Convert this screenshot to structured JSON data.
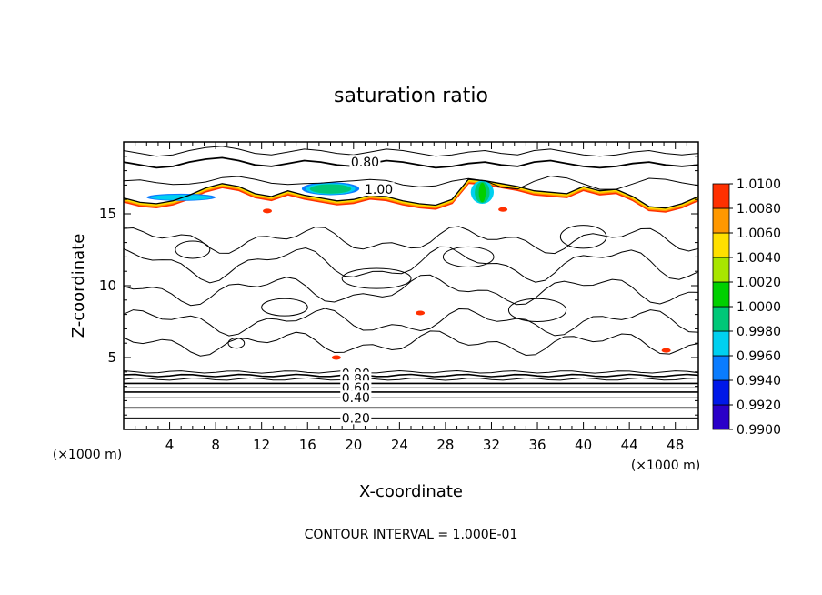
{
  "chart_data": {
    "type": "heatmap",
    "title": "saturation ratio",
    "xlabel": "X-coordinate",
    "ylabel": "Z-coordinate",
    "x_unit": "(×1000 m)",
    "z_unit": "(×1000 m)",
    "footer": "CONTOUR INTERVAL = 1.000E-01",
    "xlim": [
      0,
      50
    ],
    "ylim": [
      0,
      20
    ],
    "x_ticks": [
      4,
      8,
      12,
      16,
      20,
      24,
      28,
      32,
      36,
      40,
      44,
      48
    ],
    "y_ticks": [
      5,
      10,
      15
    ],
    "colorbar": {
      "levels": [
        "0.9900",
        "0.9920",
        "0.9940",
        "0.9960",
        "0.9980",
        "1.0000",
        "1.0020",
        "1.0040",
        "1.0060",
        "1.0080",
        "1.0100"
      ],
      "colors": [
        "#7a0090",
        "#2a00c8",
        "#0018e8",
        "#0a7cff",
        "#00d0f0",
        "#00c878",
        "#00d000",
        "#a8e600",
        "#ffe000",
        "#ff9800",
        "#ff3000",
        "#ff9090"
      ]
    },
    "contour_labels": [
      {
        "text": "0.80",
        "x": 21,
        "z": 18.6
      },
      {
        "text": "1.00",
        "x": 22.2,
        "z": 16.7
      },
      {
        "text": "0.90",
        "x": 20.2,
        "z": 3.9
      },
      {
        "text": "0.80",
        "x": 20.2,
        "z": 3.5
      },
      {
        "text": "0.60",
        "x": 20.2,
        "z": 2.9
      },
      {
        "text": "0.40",
        "x": 20.2,
        "z": 2.2
      },
      {
        "text": "0.20",
        "x": 20.2,
        "z": 0.8
      }
    ],
    "cloud_top_z": [
      16.1,
      15.8,
      15.7,
      15.9,
      16.3,
      16.8,
      17.1,
      16.9,
      16.4,
      16.2,
      16.6,
      16.3,
      16.1,
      15.9,
      16.0,
      16.3,
      16.2,
      15.9,
      15.7,
      15.6,
      16.0,
      17.4,
      17.3,
      17.1,
      16.9,
      16.6,
      16.5,
      16.4,
      16.9,
      16.6,
      16.7,
      16.2,
      15.5,
      15.4,
      15.7,
      16.2
    ],
    "upper_contour_z": [
      18.6,
      18.4,
      18.2,
      18.3,
      18.6,
      18.8,
      18.9,
      18.7,
      18.4,
      18.3,
      18.5,
      18.7,
      18.6,
      18.4,
      18.3,
      18.5,
      18.7,
      18.6,
      18.4,
      18.2,
      18.3,
      18.5,
      18.6,
      18.4,
      18.3,
      18.6,
      18.7,
      18.5,
      18.3,
      18.2,
      18.3,
      18.5,
      18.6,
      18.4,
      18.3,
      18.4
    ],
    "stable_layers_z": [
      0.8,
      1.5,
      2.2,
      2.6,
      2.9,
      3.2,
      3.5,
      3.75,
      4.0
    ]
  }
}
